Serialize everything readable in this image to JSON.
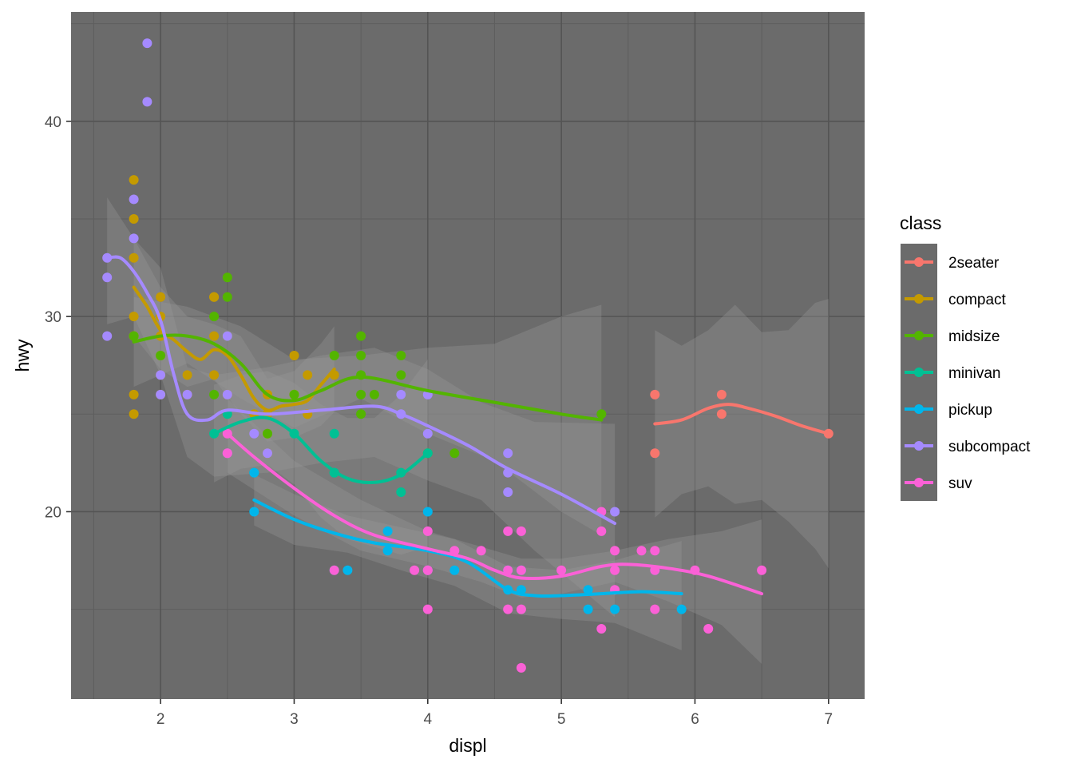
{
  "chart_data": {
    "type": "scatter",
    "xlabel": "displ",
    "ylabel": "hwy",
    "xlim": [
      1.33,
      7.27
    ],
    "ylim": [
      10.4,
      45.6
    ],
    "x_ticks": [
      2,
      3,
      4,
      5,
      6,
      7
    ],
    "y_ticks": [
      20,
      30,
      40
    ],
    "grid": true,
    "legend_title": "class",
    "legend_position": "right",
    "series": [
      {
        "name": "2seater",
        "color": "#F8766D",
        "points": [
          [
            5.7,
            26
          ],
          [
            5.7,
            23
          ],
          [
            6.2,
            26
          ],
          [
            6.2,
            25
          ],
          [
            7.0,
            24
          ]
        ],
        "smooth": [
          [
            5.7,
            24.5
          ],
          [
            5.9,
            24.7
          ],
          [
            6.1,
            25.3
          ],
          [
            6.25,
            25.5
          ],
          [
            6.4,
            25.3
          ],
          [
            6.6,
            24.9
          ],
          [
            6.8,
            24.4
          ],
          [
            7.0,
            24.0
          ]
        ],
        "band": {
          "x": [
            5.7,
            5.9,
            6.1,
            6.3,
            6.5,
            6.7,
            6.9,
            7.0
          ],
          "upper": [
            29.3,
            28.5,
            29.3,
            30.6,
            29.2,
            29.3,
            30.7,
            30.9
          ],
          "lower": [
            19.7,
            20.9,
            21.3,
            20.4,
            20.6,
            19.5,
            18.1,
            17.1
          ]
        }
      },
      {
        "name": "compact",
        "color": "#C49A00",
        "points": [
          [
            1.8,
            29
          ],
          [
            1.8,
            29
          ],
          [
            2.0,
            31
          ],
          [
            2.0,
            30
          ],
          [
            2.8,
            26
          ],
          [
            2.8,
            26
          ],
          [
            3.1,
            27
          ],
          [
            1.8,
            26
          ],
          [
            1.8,
            25
          ],
          [
            2.0,
            28
          ],
          [
            2.0,
            27
          ],
          [
            2.8,
            25
          ],
          [
            2.8,
            25
          ],
          [
            3.1,
            25
          ],
          [
            3.1,
            25
          ],
          [
            2.2,
            26
          ],
          [
            2.2,
            27
          ],
          [
            2.4,
            31
          ],
          [
            2.4,
            31
          ],
          [
            3.0,
            26
          ],
          [
            3.0,
            26
          ],
          [
            3.3,
            27
          ],
          [
            1.8,
            37
          ],
          [
            1.8,
            35
          ],
          [
            1.8,
            33
          ],
          [
            2.0,
            29
          ],
          [
            2.5,
            26
          ],
          [
            2.5,
            25
          ],
          [
            2.8,
            24
          ],
          [
            1.8,
            30
          ],
          [
            2.4,
            29
          ],
          [
            2.4,
            27
          ],
          [
            2.5,
            29
          ],
          [
            2.8,
            23
          ],
          [
            2.0,
            26
          ],
          [
            2.7,
            25
          ],
          [
            3.0,
            28
          ]
        ],
        "smooth": [
          [
            1.8,
            31.5
          ],
          [
            1.9,
            30.5
          ],
          [
            2.0,
            29.3
          ],
          [
            2.1,
            28.8
          ],
          [
            2.2,
            28.2
          ],
          [
            2.3,
            27.8
          ],
          [
            2.4,
            28.3
          ],
          [
            2.5,
            28.0
          ],
          [
            2.6,
            27.0
          ],
          [
            2.7,
            25.8
          ],
          [
            2.8,
            25.2
          ],
          [
            2.9,
            25.4
          ],
          [
            3.0,
            25.5
          ],
          [
            3.1,
            25.7
          ],
          [
            3.2,
            26.5
          ],
          [
            3.3,
            27.3
          ]
        ],
        "band": {
          "x": [
            1.8,
            2.0,
            2.2,
            2.4,
            2.6,
            2.8,
            3.0,
            3.2,
            3.3
          ],
          "upper": [
            34.0,
            31.5,
            30.0,
            29.6,
            29.0,
            26.8,
            27.2,
            28.6,
            29.5
          ],
          "lower": [
            29.0,
            27.3,
            26.4,
            26.8,
            25.0,
            23.6,
            23.8,
            24.4,
            25.1
          ]
        }
      },
      {
        "name": "midsize",
        "color": "#53B400",
        "points": [
          [
            2.4,
            30
          ],
          [
            2.4,
            26
          ],
          [
            2.5,
            32
          ],
          [
            2.5,
            31
          ],
          [
            3.5,
            29
          ],
          [
            3.5,
            28
          ],
          [
            3.5,
            26
          ],
          [
            3.5,
            25
          ],
          [
            3.6,
            26
          ],
          [
            3.8,
            28
          ],
          [
            3.8,
            27
          ],
          [
            4.2,
            23
          ],
          [
            5.3,
            25
          ],
          [
            1.8,
            29
          ],
          [
            2.0,
            28
          ],
          [
            2.8,
            24
          ],
          [
            3.3,
            28
          ],
          [
            3.8,
            26
          ],
          [
            4.0,
            23
          ],
          [
            2.5,
            29
          ],
          [
            3.5,
            27
          ],
          [
            3.0,
            26
          ]
        ],
        "smooth": [
          [
            1.8,
            28.7
          ],
          [
            2.0,
            29.0
          ],
          [
            2.2,
            29.0
          ],
          [
            2.4,
            28.6
          ],
          [
            2.6,
            27.6
          ],
          [
            2.8,
            26.0
          ],
          [
            3.0,
            25.7
          ],
          [
            3.2,
            26.2
          ],
          [
            3.5,
            26.9
          ],
          [
            4.0,
            26.2
          ],
          [
            4.5,
            25.6
          ],
          [
            5.0,
            25.0
          ],
          [
            5.3,
            24.7
          ]
        ],
        "band": {
          "x": [
            1.8,
            2.2,
            2.6,
            3.0,
            3.5,
            4.0,
            4.5,
            5.0,
            5.3
          ],
          "upper": [
            31.0,
            30.5,
            29.5,
            27.8,
            28.0,
            28.4,
            28.6,
            30.0,
            30.6
          ],
          "lower": [
            26.4,
            27.6,
            25.8,
            24.3,
            25.8,
            24.0,
            22.6,
            20.0,
            18.8
          ]
        }
      },
      {
        "name": "minivan",
        "color": "#00C094",
        "points": [
          [
            2.4,
            24
          ],
          [
            3.0,
            24
          ],
          [
            3.3,
            22
          ],
          [
            3.3,
            22
          ],
          [
            3.3,
            24
          ],
          [
            3.8,
            22
          ],
          [
            3.8,
            21
          ],
          [
            4.0,
            23
          ],
          [
            2.5,
            25
          ],
          [
            2.7,
            22
          ],
          [
            3.3,
            17
          ]
        ],
        "smooth": [
          [
            2.4,
            24.0
          ],
          [
            2.6,
            24.6
          ],
          [
            2.8,
            24.8
          ],
          [
            3.0,
            24.0
          ],
          [
            3.2,
            22.6
          ],
          [
            3.4,
            21.7
          ],
          [
            3.6,
            21.5
          ],
          [
            3.8,
            21.9
          ],
          [
            4.0,
            23.0
          ]
        ],
        "band": {
          "x": [
            2.4,
            2.6,
            2.8,
            3.0,
            3.2,
            3.4,
            3.6,
            3.8,
            4.0
          ],
          "upper": [
            26.5,
            27.0,
            27.2,
            26.6,
            25.5,
            24.8,
            24.8,
            26.0,
            27.8
          ],
          "lower": [
            21.5,
            22.2,
            22.4,
            21.4,
            19.7,
            18.6,
            18.2,
            17.8,
            18.2
          ]
        }
      },
      {
        "name": "pickup",
        "color": "#00B6EB",
        "points": [
          [
            2.7,
            20
          ],
          [
            2.7,
            22
          ],
          [
            3.4,
            17
          ],
          [
            3.7,
            18
          ],
          [
            3.7,
            19
          ],
          [
            4.0,
            20
          ],
          [
            4.0,
            17
          ],
          [
            4.2,
            17
          ],
          [
            4.6,
            16
          ],
          [
            4.6,
            17
          ],
          [
            4.7,
            17
          ],
          [
            4.7,
            16
          ],
          [
            5.2,
            16
          ],
          [
            5.2,
            15
          ],
          [
            5.4,
            15
          ],
          [
            5.7,
            17
          ],
          [
            5.9,
            15
          ]
        ],
        "smooth": [
          [
            2.7,
            20.6
          ],
          [
            3.0,
            19.6
          ],
          [
            3.3,
            18.9
          ],
          [
            3.6,
            18.4
          ],
          [
            4.0,
            18.0
          ],
          [
            4.3,
            17.4
          ],
          [
            4.6,
            16.0
          ],
          [
            4.8,
            15.7
          ],
          [
            5.0,
            15.7
          ],
          [
            5.3,
            15.8
          ],
          [
            5.6,
            15.9
          ],
          [
            5.9,
            15.8
          ]
        ],
        "band": {
          "x": [
            2.7,
            3.0,
            3.4,
            3.8,
            4.2,
            4.6,
            5.0,
            5.4,
            5.9
          ],
          "upper": [
            21.9,
            20.9,
            19.8,
            19.2,
            18.6,
            17.2,
            17.0,
            17.5,
            18.5
          ],
          "lower": [
            19.3,
            18.3,
            17.9,
            17.0,
            16.2,
            14.8,
            14.5,
            14.3,
            12.9
          ]
        }
      },
      {
        "name": "subcompact",
        "color": "#A58AFF",
        "points": [
          [
            1.9,
            44
          ],
          [
            1.9,
            41
          ],
          [
            1.6,
            33
          ],
          [
            1.6,
            32
          ],
          [
            1.6,
            29
          ],
          [
            1.8,
            36
          ],
          [
            1.8,
            34
          ],
          [
            2.0,
            27
          ],
          [
            2.0,
            26
          ],
          [
            2.2,
            26
          ],
          [
            2.5,
            29
          ],
          [
            2.5,
            26
          ],
          [
            2.5,
            23
          ],
          [
            2.7,
            24
          ],
          [
            3.8,
            25
          ],
          [
            4.0,
            24
          ],
          [
            4.0,
            26
          ],
          [
            4.6,
            23
          ],
          [
            4.6,
            22
          ],
          [
            4.6,
            21
          ],
          [
            5.4,
            20
          ],
          [
            2.8,
            23
          ],
          [
            3.8,
            26
          ]
        ],
        "smooth": [
          [
            1.6,
            33.0
          ],
          [
            1.7,
            33.0
          ],
          [
            1.8,
            32.3
          ],
          [
            1.9,
            31.2
          ],
          [
            2.0,
            29.8
          ],
          [
            2.1,
            27.0
          ],
          [
            2.2,
            25.0
          ],
          [
            2.35,
            24.7
          ],
          [
            2.5,
            25.2
          ],
          [
            2.8,
            25.0
          ],
          [
            3.2,
            25.2
          ],
          [
            3.6,
            25.4
          ],
          [
            3.8,
            25.0
          ],
          [
            4.0,
            24.4
          ],
          [
            4.3,
            23.4
          ],
          [
            4.6,
            22.2
          ],
          [
            5.0,
            20.9
          ],
          [
            5.4,
            19.4
          ]
        ],
        "band": {
          "x": [
            1.6,
            1.8,
            2.0,
            2.2,
            2.4,
            2.8,
            3.2,
            3.6,
            4.0,
            4.4,
            4.8,
            5.4
          ],
          "upper": [
            36.1,
            34.0,
            32.5,
            27.4,
            27.0,
            27.4,
            28.0,
            28.4,
            27.3,
            25.6,
            24.6,
            24.5
          ],
          "lower": [
            29.6,
            30.0,
            27.0,
            22.8,
            21.8,
            22.0,
            22.5,
            22.8,
            21.6,
            20.6,
            18.0,
            14.6
          ]
        }
      },
      {
        "name": "suv",
        "color": "#FB61D7",
        "points": [
          [
            2.5,
            24
          ],
          [
            2.5,
            23
          ],
          [
            4.0,
            19
          ],
          [
            4.0,
            17
          ],
          [
            4.0,
            15
          ],
          [
            4.2,
            18
          ],
          [
            4.4,
            18
          ],
          [
            4.6,
            19
          ],
          [
            4.6,
            17
          ],
          [
            4.6,
            15
          ],
          [
            4.7,
            19
          ],
          [
            4.7,
            17
          ],
          [
            4.7,
            15
          ],
          [
            4.7,
            12
          ],
          [
            5.0,
            17
          ],
          [
            5.3,
            19
          ],
          [
            5.3,
            20
          ],
          [
            5.3,
            14
          ],
          [
            5.4,
            18
          ],
          [
            5.4,
            17
          ],
          [
            5.4,
            16
          ],
          [
            5.6,
            18
          ],
          [
            5.7,
            18
          ],
          [
            5.7,
            17
          ],
          [
            5.7,
            15
          ],
          [
            6.0,
            17
          ],
          [
            6.1,
            14
          ],
          [
            6.5,
            17
          ],
          [
            3.3,
            17
          ],
          [
            3.9,
            17
          ],
          [
            4.0,
            17
          ]
        ],
        "smooth": [
          [
            2.5,
            24.0
          ],
          [
            2.7,
            22.8
          ],
          [
            3.0,
            21.2
          ],
          [
            3.3,
            19.8
          ],
          [
            3.6,
            18.8
          ],
          [
            4.0,
            18.1
          ],
          [
            4.3,
            17.6
          ],
          [
            4.5,
            17.0
          ],
          [
            4.7,
            16.6
          ],
          [
            5.0,
            16.7
          ],
          [
            5.3,
            17.2
          ],
          [
            5.5,
            17.3
          ],
          [
            5.8,
            17.1
          ],
          [
            6.1,
            16.7
          ],
          [
            6.5,
            15.8
          ]
        ],
        "band": {
          "x": [
            2.5,
            3.0,
            3.5,
            4.0,
            4.4,
            4.7,
            5.0,
            5.4,
            5.8,
            6.2,
            6.5
          ],
          "upper": [
            25.8,
            22.6,
            20.6,
            19.0,
            18.2,
            17.6,
            17.6,
            18.0,
            18.6,
            19.0,
            19.6
          ],
          "lower": [
            22.0,
            19.8,
            18.0,
            17.2,
            16.4,
            15.6,
            15.8,
            16.4,
            15.4,
            14.2,
            12.2
          ]
        }
      }
    ]
  }
}
